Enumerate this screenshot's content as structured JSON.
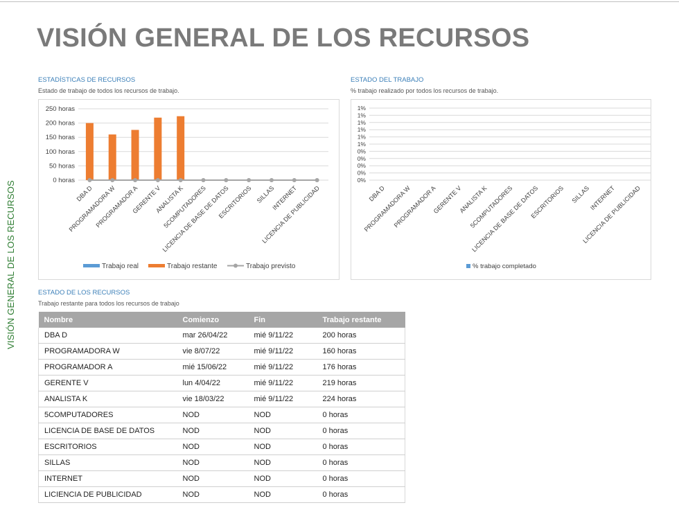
{
  "side_label": "VISIÓN GENERAL DE LOS RECURSOS",
  "page_title": "VISIÓN GENERAL DE LOS RECURSOS",
  "stats": {
    "title": "ESTADÍSTICAS DE RECURSOS",
    "subtitle": "Estado de trabajo de todos los recursos de trabajo."
  },
  "status": {
    "title": "ESTADO DEL TRABAJO",
    "subtitle": "% trabajo realizado por todos los recursos de trabajo."
  },
  "resources": {
    "title": "ESTADO DE LOS RECURSOS",
    "subtitle": "Trabajo restante para todos los recursos de trabajo",
    "columns": [
      "Nombre",
      "Comienzo",
      "Fin",
      "Trabajo restante"
    ],
    "rows": [
      [
        "DBA D",
        "mar 26/04/22",
        "mié 9/11/22",
        "200 horas"
      ],
      [
        "PROGRAMADORA W",
        "vie 8/07/22",
        "mié 9/11/22",
        "160 horas"
      ],
      [
        "PROGRAMADOR A",
        "mié 15/06/22",
        "mié 9/11/22",
        "176 horas"
      ],
      [
        "GERENTE V",
        "lun 4/04/22",
        "mié 9/11/22",
        "219 horas"
      ],
      [
        "ANALISTA K",
        "vie 18/03/22",
        "mié 9/11/22",
        "224 horas"
      ],
      [
        "5COMPUTADORES",
        "NOD",
        "NOD",
        "0 horas"
      ],
      [
        "LICENCIA DE BASE DE DATOS",
        "NOD",
        "NOD",
        "0 horas"
      ],
      [
        "ESCRITORIOS",
        "NOD",
        "NOD",
        "0 horas"
      ],
      [
        "SILLAS",
        "NOD",
        "NOD",
        "0 horas"
      ],
      [
        "INTERNET",
        "NOD",
        "NOD",
        "0 horas"
      ],
      [
        "LICIENCIA DE PUBLICIDAD",
        "NOD",
        "NOD",
        "0 horas"
      ]
    ]
  },
  "chart_data": [
    {
      "type": "bar",
      "categories": [
        "DBA D",
        "PROGRAMADORA W",
        "PROGRAMADOR A",
        "GERENTE V",
        "ANALISTA K",
        "5COMPUTADORES",
        "LICENCIA DE BASE DE DATOS",
        "ESCRITORIOS",
        "SILLAS",
        "INTERNET",
        "LICENCIA DE PUBLICIDAD"
      ],
      "series": [
        {
          "name": "Trabajo real",
          "kind": "bar",
          "color": "#5b9bd5",
          "values": [
            0,
            0,
            0,
            0,
            0,
            0,
            0,
            0,
            0,
            0,
            0
          ]
        },
        {
          "name": "Trabajo restante",
          "kind": "bar",
          "color": "#ed7d31",
          "values": [
            200,
            160,
            176,
            219,
            224,
            0,
            0,
            0,
            0,
            0,
            0
          ]
        },
        {
          "name": "Trabajo previsto",
          "kind": "line",
          "color": "#a5a5a5",
          "values": [
            0,
            0,
            0,
            0,
            0,
            0,
            0,
            0,
            0,
            0,
            0
          ]
        }
      ],
      "yticks": [
        "0 horas",
        "50 horas",
        "100 horas",
        "150 horas",
        "200 horas",
        "250 horas"
      ],
      "ylim": [
        0,
        250
      ],
      "legend": "bottom",
      "grid": true
    },
    {
      "type": "bar",
      "categories": [
        "DBA D",
        "PROGRAMADORA W",
        "PROGRAMADOR A",
        "GERENTE V",
        "ANALISTA K",
        "5COMPUTADORES",
        "LICENCIA DE BASE DE DATOS",
        "ESCRITORIOS",
        "SILLAS",
        "INTERNET",
        "LICENCIA DE PUBLICIDAD"
      ],
      "series": [
        {
          "name": "% trabajo completado",
          "kind": "bar",
          "color": "#5b9bd5",
          "values": [
            0,
            0,
            0,
            0,
            0,
            0,
            0,
            0,
            0,
            0,
            0
          ]
        }
      ],
      "yticks": [
        "0%",
        "0%",
        "0%",
        "0%",
        "0%",
        "1%",
        "1%",
        "1%",
        "1%",
        "1%",
        "1%"
      ],
      "legend": "bottom",
      "grid": true
    }
  ]
}
